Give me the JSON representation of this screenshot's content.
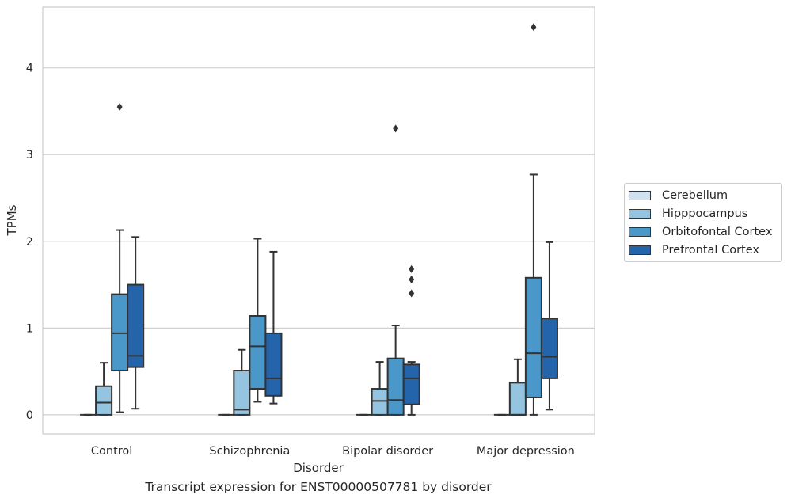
{
  "bottom_title": "Transcript expression for ENST00000507781 by disorder",
  "colors": {
    "Cerebellum": "#d0e1f2",
    "Hipppocampus": "#94c4df",
    "Orbitofontal Cortex": "#4a98c9",
    "Prefrontal Cortex": "#2464ab",
    "line": "#333333",
    "grid": "#d0d0d0",
    "axis_text": "#262626"
  },
  "chart_data": {
    "type": "box",
    "xlabel": "Disorder",
    "ylabel": "TPMs",
    "ylim": [
      -0.22,
      4.7
    ],
    "yticks": [
      0,
      1,
      2,
      3,
      4
    ],
    "categories": [
      "Control",
      "Schizophrenia",
      "Bipolar disorder",
      "Major depression"
    ],
    "grid": "horizontal",
    "legend_position": "right",
    "series": [
      {
        "name": "Cerebellum",
        "boxes": [
          {
            "min": 0,
            "q1": 0,
            "median": 0,
            "q3": 0,
            "max": 0,
            "outliers": []
          },
          {
            "min": 0,
            "q1": 0,
            "median": 0,
            "q3": 0,
            "max": 0,
            "outliers": []
          },
          {
            "min": 0,
            "q1": 0,
            "median": 0,
            "q3": 0,
            "max": 0,
            "outliers": []
          },
          {
            "min": 0,
            "q1": 0,
            "median": 0,
            "q3": 0,
            "max": 0,
            "outliers": []
          }
        ]
      },
      {
        "name": "Hipppocampus",
        "boxes": [
          {
            "min": 0,
            "q1": 0,
            "median": 0.14,
            "q3": 0.33,
            "max": 0.6,
            "outliers": []
          },
          {
            "min": 0,
            "q1": 0,
            "median": 0.06,
            "q3": 0.51,
            "max": 0.75,
            "outliers": []
          },
          {
            "min": 0,
            "q1": 0,
            "median": 0.16,
            "q3": 0.3,
            "max": 0.61,
            "outliers": []
          },
          {
            "min": 0,
            "q1": 0,
            "median": 0,
            "q3": 0.37,
            "max": 0.64,
            "outliers": []
          }
        ]
      },
      {
        "name": "Orbitofontal Cortex",
        "boxes": [
          {
            "min": 0.03,
            "q1": 0.51,
            "median": 0.94,
            "q3": 1.39,
            "max": 2.13,
            "outliers": [
              3.55
            ]
          },
          {
            "min": 0.15,
            "q1": 0.3,
            "median": 0.79,
            "q3": 1.14,
            "max": 2.03,
            "outliers": []
          },
          {
            "min": 0,
            "q1": 0,
            "median": 0.17,
            "q3": 0.65,
            "max": 1.03,
            "outliers": [
              3.3
            ]
          },
          {
            "min": 0,
            "q1": 0.2,
            "median": 0.71,
            "q3": 1.58,
            "max": 2.77,
            "outliers": [
              4.47
            ]
          }
        ]
      },
      {
        "name": "Prefrontal Cortex",
        "boxes": [
          {
            "min": 0.07,
            "q1": 0.55,
            "median": 0.68,
            "q3": 1.5,
            "max": 2.05,
            "outliers": []
          },
          {
            "min": 0.13,
            "q1": 0.22,
            "median": 0.42,
            "q3": 0.94,
            "max": 1.88,
            "outliers": []
          },
          {
            "min": 0,
            "q1": 0.12,
            "median": 0.42,
            "q3": 0.58,
            "max": 0.61,
            "outliers": [
              1.4,
              1.56,
              1.68
            ]
          },
          {
            "min": 0.06,
            "q1": 0.42,
            "median": 0.67,
            "q3": 1.11,
            "max": 1.99,
            "outliers": []
          }
        ]
      }
    ]
  }
}
